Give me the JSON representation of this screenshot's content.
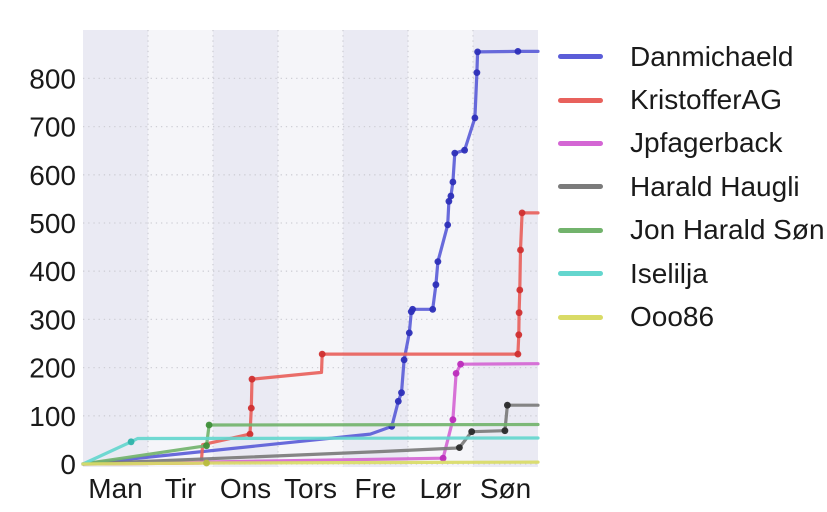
{
  "chart_data": {
    "type": "line",
    "title": "",
    "x_axis": {
      "label": "",
      "tick_labels": [
        "Man",
        "Tir",
        "Ons",
        "Tors",
        "Fre",
        "Lør",
        "Søn"
      ],
      "range_days": [
        0,
        7
      ]
    },
    "y_axis": {
      "label": "",
      "ticks": [
        0,
        100,
        200,
        300,
        400,
        500,
        600,
        700,
        800
      ],
      "range": [
        0,
        900
      ]
    },
    "panel": {
      "band_color_odd": "#eaeaf3",
      "band_color_even": "#f5f5f9",
      "grid_color": "#cfcfd6",
      "background": "#ffffff",
      "tick_text_color": "#1a1a1a"
    },
    "series": [
      {
        "name": "Danmichaeld",
        "color": "#5b5dd8",
        "marker_color": "#2d2fb8",
        "points": [
          [
            0,
            0,
            0
          ],
          [
            4.42,
            62,
            0
          ],
          [
            4.75,
            78,
            1
          ],
          [
            4.85,
            130,
            1
          ],
          [
            4.9,
            148,
            1
          ],
          [
            4.94,
            216,
            1
          ],
          [
            5.02,
            272,
            1
          ],
          [
            5.05,
            316,
            1
          ],
          [
            5.07,
            321,
            1
          ],
          [
            5.38,
            321,
            1
          ],
          [
            5.43,
            372,
            1
          ],
          [
            5.46,
            420,
            1
          ],
          [
            5.61,
            496,
            1
          ],
          [
            5.63,
            545,
            1
          ],
          [
            5.66,
            556,
            1
          ],
          [
            5.69,
            585,
            1
          ],
          [
            5.72,
            645,
            1
          ],
          [
            5.87,
            651,
            1
          ],
          [
            6.03,
            718,
            1
          ],
          [
            6.06,
            812,
            1
          ],
          [
            6.07,
            855,
            1
          ],
          [
            6.69,
            856,
            1
          ],
          [
            7,
            856,
            0
          ]
        ]
      },
      {
        "name": "KristofferAG",
        "color": "#e8615c",
        "marker_color": "#d03030",
        "points": [
          [
            0,
            0,
            0
          ],
          [
            1.82,
            2,
            0
          ],
          [
            1.84,
            40,
            0
          ],
          [
            2.57,
            62,
            1
          ],
          [
            2.59,
            116,
            1
          ],
          [
            2.6,
            176,
            1
          ],
          [
            3.67,
            190,
            0
          ],
          [
            3.68,
            228,
            1
          ],
          [
            6.69,
            228,
            1
          ],
          [
            6.705,
            268,
            1
          ],
          [
            6.71,
            314,
            1
          ],
          [
            6.72,
            361,
            1
          ],
          [
            6.73,
            444,
            1
          ],
          [
            6.755,
            521,
            1
          ],
          [
            7,
            521,
            0
          ]
        ]
      },
      {
        "name": "Jpfagerback",
        "color": "#d466d4",
        "marker_color": "#bc2dbc",
        "points": [
          [
            0,
            0,
            0
          ],
          [
            5.54,
            12,
            1
          ],
          [
            5.69,
            92,
            1
          ],
          [
            5.74,
            188,
            1
          ],
          [
            5.81,
            207,
            1
          ],
          [
            7,
            208,
            0
          ]
        ]
      },
      {
        "name": "Harald Haugli",
        "color": "#7b7b7b",
        "marker_color": "#2a2a2a",
        "points": [
          [
            0,
            0,
            0
          ],
          [
            4.6,
            26,
            0
          ],
          [
            5.72,
            33,
            0
          ],
          [
            5.79,
            34,
            1
          ],
          [
            5.98,
            67,
            1
          ],
          [
            6.49,
            69,
            1
          ],
          [
            6.53,
            122,
            1
          ],
          [
            7,
            122,
            0
          ]
        ]
      },
      {
        "name": "Jon Harald Søn",
        "color": "#72b36c",
        "marker_color": "#3f8f3a",
        "points": [
          [
            0,
            0,
            0
          ],
          [
            1.9,
            38,
            1
          ],
          [
            1.94,
            81,
            1
          ],
          [
            7,
            82,
            0
          ]
        ]
      },
      {
        "name": "Iselilja",
        "color": "#64d6ce",
        "marker_color": "#2fb3aa",
        "points": [
          [
            0,
            0,
            0
          ],
          [
            0.74,
            46,
            1
          ],
          [
            0.84,
            53,
            0
          ],
          [
            7,
            54,
            0
          ]
        ]
      },
      {
        "name": "Ooo86",
        "color": "#d9db66",
        "marker_color": "#b8ba3e",
        "points": [
          [
            0,
            0,
            0
          ],
          [
            1.9,
            2,
            1
          ],
          [
            7,
            4,
            0
          ]
        ]
      }
    ],
    "legend_position": "right-outside"
  }
}
